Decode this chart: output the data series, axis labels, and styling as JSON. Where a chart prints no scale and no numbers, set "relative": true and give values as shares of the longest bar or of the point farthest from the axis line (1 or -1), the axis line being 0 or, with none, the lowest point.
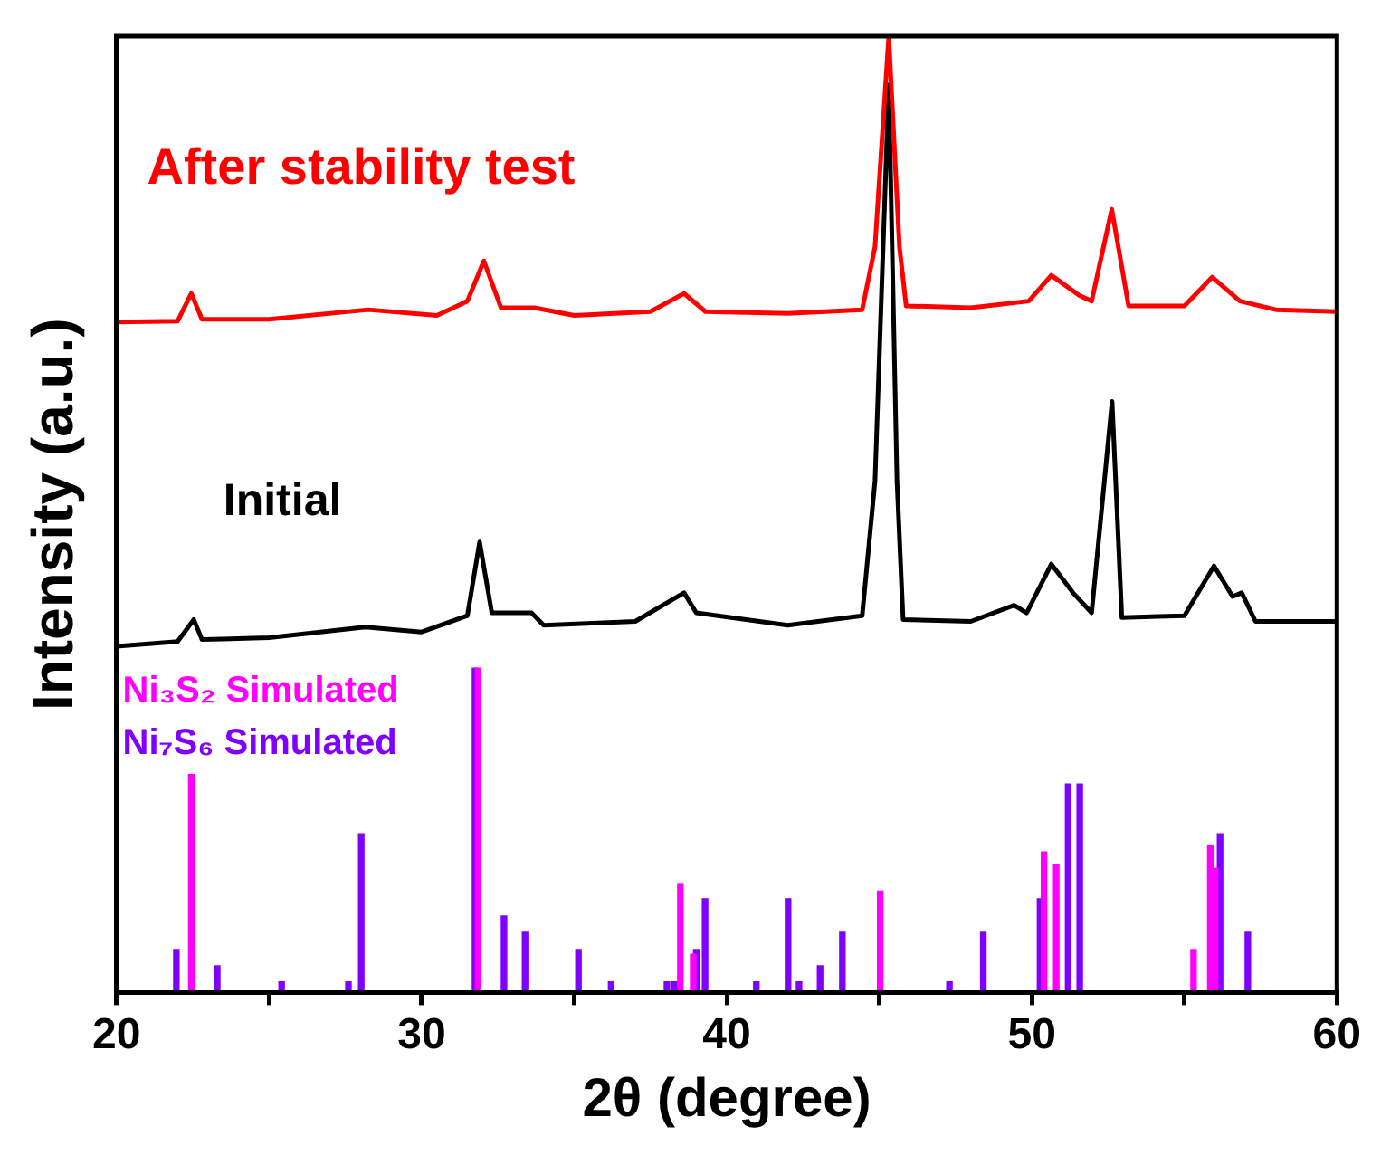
{
  "chart_data": {
    "type": "line",
    "xlabel": "2θ (degree)",
    "ylabel": "Intensity (a.u.)",
    "relative": true,
    "xlim": [
      20,
      60
    ],
    "xticks": [
      20,
      {
        "value": 25,
        "label": null
      },
      30,
      {
        "value": 35,
        "label": null
      },
      40,
      {
        "value": 45,
        "label": null
      },
      50,
      {
        "value": 55,
        "label": null
      },
      60
    ],
    "grid": false,
    "series": [
      {
        "name": "After stability test",
        "color": "#ff0000",
        "x": [
          20,
          22.0,
          22.45,
          22.8,
          25,
          28.25,
          30.5,
          31.5,
          32.04,
          32.6,
          33.7,
          35,
          37.5,
          38.6,
          39.3,
          42,
          44.44,
          44.86,
          45.31,
          45.66,
          45.88,
          48,
          49.9,
          50.64,
          51.55,
          51.96,
          52.62,
          53.17,
          55,
          55.91,
          56.82,
          58,
          60
        ],
        "values": [
          0.701,
          0.702,
          0.731,
          0.704,
          0.704,
          0.714,
          0.708,
          0.723,
          0.765,
          0.716,
          0.716,
          0.708,
          0.712,
          0.731,
          0.712,
          0.71,
          0.714,
          0.78,
          1.0,
          0.78,
          0.718,
          0.716,
          0.723,
          0.75,
          0.729,
          0.723,
          0.819,
          0.718,
          0.718,
          0.748,
          0.723,
          0.714,
          0.712
        ]
      },
      {
        "name": "Initial",
        "color": "#000000",
        "x": [
          20,
          22.0,
          22.53,
          22.8,
          25,
          28.15,
          30,
          31.5,
          31.9,
          32.3,
          33.6,
          34,
          37,
          38.6,
          39,
          42,
          44.44,
          44.86,
          45.31,
          45.58,
          45.78,
          48,
          49.42,
          49.83,
          50.64,
          51.35,
          51.96,
          52.63,
          52.95,
          55,
          55.97,
          56.58,
          56.88,
          57.33,
          60
        ],
        "values": [
          0.362,
          0.367,
          0.39,
          0.369,
          0.371,
          0.382,
          0.377,
          0.394,
          0.471,
          0.397,
          0.397,
          0.384,
          0.388,
          0.418,
          0.397,
          0.384,
          0.394,
          0.535,
          0.949,
          0.535,
          0.39,
          0.388,
          0.405,
          0.397,
          0.448,
          0.418,
          0.397,
          0.618,
          0.392,
          0.394,
          0.446,
          0.414,
          0.418,
          0.388,
          0.388
        ]
      },
      {
        "name": "Ni₃S₂ Simulated",
        "type": "bar",
        "color": "#ff00ff",
        "x": [
          22.45,
          31.85,
          38.48,
          38.9,
          45.03,
          50.4,
          50.8,
          55.3,
          55.85,
          56.01
        ],
        "values": [
          0.228,
          0.339,
          0.113,
          0.04,
          0.106,
          0.147,
          0.134,
          0.045,
          0.153,
          0.13
        ]
      },
      {
        "name": "Ni₇S₆ Simulated",
        "type": "bar",
        "color": "#8000ff",
        "x": [
          21.96,
          23.3,
          25.41,
          27.6,
          28.02,
          31.75,
          32.7,
          33.39,
          35.14,
          36.21,
          38.04,
          38.28,
          39.0,
          39.29,
          40.97,
          42.01,
          42.37,
          43.06,
          43.79,
          47.3,
          48.41,
          50.27,
          51.19,
          51.57,
          56.17,
          57.08
        ],
        "values": [
          0.045,
          0.028,
          0.011,
          0.011,
          0.166,
          0.339,
          0.08,
          0.063,
          0.045,
          0.011,
          0.011,
          0.011,
          0.045,
          0.098,
          0.011,
          0.098,
          0.011,
          0.028,
          0.063,
          0.011,
          0.063,
          0.098,
          0.218,
          0.218,
          0.166,
          0.063
        ]
      }
    ]
  }
}
